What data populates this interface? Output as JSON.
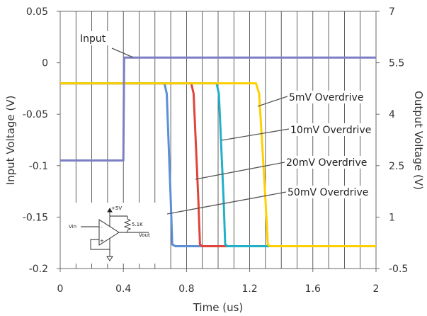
{
  "chart_data": {
    "type": "line",
    "xlabel": "Time (us)",
    "ylabel_left": "Input Voltage (V)",
    "ylabel_right": "Output Voltage (V)",
    "xlim": [
      0,
      2
    ],
    "ylim_left": [
      -0.2,
      0.05
    ],
    "ylim_right": [
      -0.5,
      7
    ],
    "x_ticks": [
      "0",
      "0.4",
      "0.8",
      "1.2",
      "1.6",
      "2"
    ],
    "y_left_ticks": [
      "0.05",
      "0",
      "-0.05",
      "-0.1",
      "-0.15",
      "-0.2"
    ],
    "y_right_ticks": [
      "7",
      "5.5",
      "4",
      "2.5",
      "1",
      "-0.5"
    ],
    "grid": "vertical",
    "series": [
      {
        "name": "Input",
        "axis": "left",
        "color": "#7b7fc4",
        "points": [
          [
            0,
            -0.095
          ],
          [
            0.4,
            -0.095
          ],
          [
            0.405,
            0.005
          ],
          [
            2,
            0.005
          ]
        ]
      },
      {
        "name": "50mV Overdrive",
        "axis": "right",
        "color": "#5b8fd6",
        "points": [
          [
            0,
            4.9
          ],
          [
            0.66,
            4.9
          ],
          [
            0.675,
            4.6
          ],
          [
            0.7,
            1.5
          ],
          [
            0.71,
            0.2
          ],
          [
            0.73,
            0.15
          ],
          [
            2,
            0.15
          ]
        ]
      },
      {
        "name": "20mV Overdrive",
        "axis": "right",
        "color": "#e0443a",
        "points": [
          [
            0,
            4.9
          ],
          [
            0.83,
            4.9
          ],
          [
            0.845,
            4.6
          ],
          [
            0.875,
            1.5
          ],
          [
            0.885,
            0.2
          ],
          [
            0.9,
            0.15
          ],
          [
            2,
            0.15
          ]
        ]
      },
      {
        "name": "10mV Overdrive",
        "axis": "right",
        "color": "#20b0c8",
        "points": [
          [
            0,
            4.9
          ],
          [
            0.99,
            4.9
          ],
          [
            1.005,
            4.6
          ],
          [
            1.035,
            1.5
          ],
          [
            1.045,
            0.2
          ],
          [
            1.06,
            0.15
          ],
          [
            2,
            0.15
          ]
        ]
      },
      {
        "name": "5mV Overdrive",
        "axis": "right",
        "color": "#ffd000",
        "points": [
          [
            0,
            4.9
          ],
          [
            1.24,
            4.9
          ],
          [
            1.26,
            4.6
          ],
          [
            1.3,
            1.5
          ],
          [
            1.315,
            0.2
          ],
          [
            1.33,
            0.15
          ],
          [
            2,
            0.15
          ]
        ]
      }
    ],
    "annotations": [
      "Input",
      "5mV Overdrive",
      "10mV Overdrive",
      "20mV Overdrive",
      "50mV Overdrive"
    ],
    "inset_schematic": {
      "supply_label": "+5V",
      "resistor_label": "5.1K",
      "input_label": "Vin",
      "output_label": "Vout",
      "minus_sign": "-",
      "plus_sign": "+"
    }
  }
}
